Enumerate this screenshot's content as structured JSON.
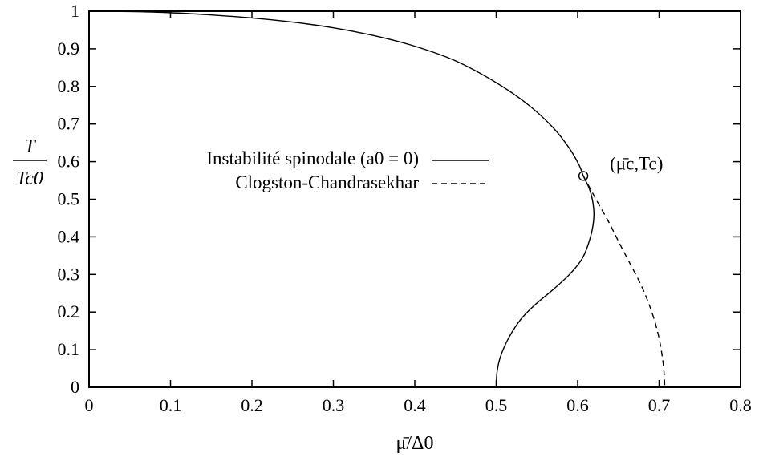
{
  "chart_data": {
    "type": "line",
    "xlabel": "μ̄/Δ0",
    "ylabel": "T / Tc0",
    "xlim": [
      0,
      0.8
    ],
    "ylim": [
      0,
      1
    ],
    "x_ticks": [
      "0",
      "0.1",
      "0.2",
      "0.3",
      "0.4",
      "0.5",
      "0.6",
      "0.7",
      "0.8"
    ],
    "y_ticks": [
      "0",
      "0.1",
      "0.2",
      "0.3",
      "0.4",
      "0.5",
      "0.6",
      "0.7",
      "0.8",
      "0.9",
      "1"
    ],
    "grid": false,
    "legend_position": "center-left",
    "series": [
      {
        "name": "Instabilité spinodale (a0 = 0)",
        "style": "solid",
        "points": [
          [
            0.0,
            1.0
          ],
          [
            0.05,
            0.999
          ],
          [
            0.1,
            0.996
          ],
          [
            0.15,
            0.99
          ],
          [
            0.2,
            0.982
          ],
          [
            0.25,
            0.971
          ],
          [
            0.3,
            0.956
          ],
          [
            0.35,
            0.935
          ],
          [
            0.4,
            0.907
          ],
          [
            0.45,
            0.868
          ],
          [
            0.5,
            0.81
          ],
          [
            0.54,
            0.75
          ],
          [
            0.57,
            0.69
          ],
          [
            0.59,
            0.635
          ],
          [
            0.602,
            0.59
          ],
          [
            0.607,
            0.562
          ],
          [
            0.614,
            0.53
          ],
          [
            0.618,
            0.5
          ],
          [
            0.62,
            0.46
          ],
          [
            0.618,
            0.42
          ],
          [
            0.613,
            0.38
          ],
          [
            0.605,
            0.34
          ],
          [
            0.59,
            0.3
          ],
          [
            0.57,
            0.26
          ],
          [
            0.548,
            0.22
          ],
          [
            0.53,
            0.18
          ],
          [
            0.515,
            0.13
          ],
          [
            0.505,
            0.08
          ],
          [
            0.501,
            0.04
          ],
          [
            0.5,
            0.0
          ]
        ]
      },
      {
        "name": "Clogston-Chandrasekhar",
        "style": "dashed",
        "points": [
          [
            0.607,
            0.562
          ],
          [
            0.615,
            0.53
          ],
          [
            0.625,
            0.49
          ],
          [
            0.638,
            0.44
          ],
          [
            0.652,
            0.38
          ],
          [
            0.664,
            0.33
          ],
          [
            0.676,
            0.28
          ],
          [
            0.686,
            0.23
          ],
          [
            0.694,
            0.18
          ],
          [
            0.7,
            0.13
          ],
          [
            0.704,
            0.08
          ],
          [
            0.706,
            0.04
          ],
          [
            0.707,
            0.0
          ]
        ]
      }
    ],
    "annotations": [
      {
        "label": "(μ̄c,Tc)",
        "point": [
          0.607,
          0.562
        ],
        "marker": "circle"
      }
    ]
  }
}
